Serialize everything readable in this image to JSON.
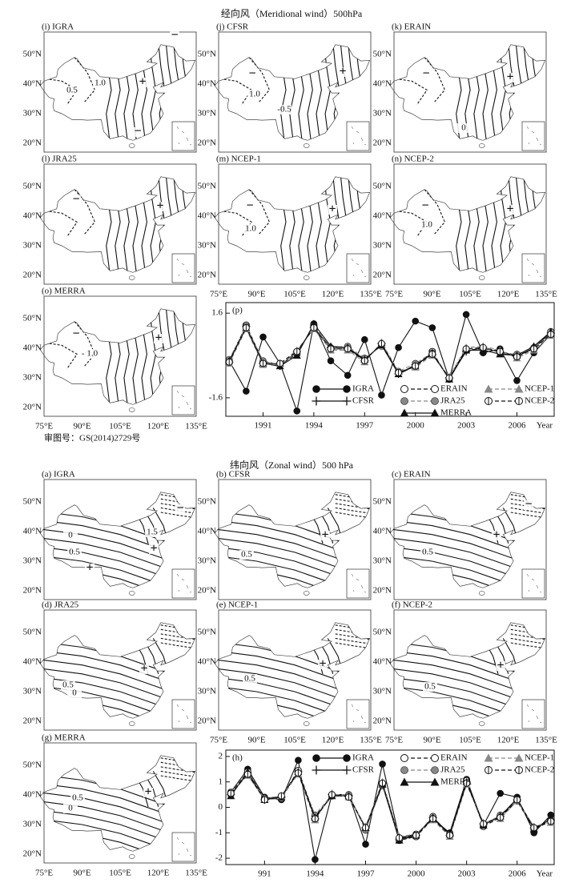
{
  "meridional": {
    "title": "经向风（Meridional wind）500hPa",
    "maps": [
      {
        "label": "(i) IGRA",
        "annotations": [
          "−",
          "+",
          "−",
          "1.0",
          "0.5"
        ]
      },
      {
        "label": "(j) CFSR",
        "annotations": [
          "−",
          "+",
          "1.0",
          "-0.5"
        ]
      },
      {
        "label": "(k) ERAIN",
        "annotations": [
          "−",
          "+",
          "0"
        ]
      },
      {
        "label": "(l) JRA25",
        "annotations": [
          "−",
          "+"
        ]
      },
      {
        "label": "(m) NCEP-1",
        "annotations": [
          "−",
          "+",
          "1.0"
        ]
      },
      {
        "label": "(n) NCEP-2",
        "annotations": [
          "−",
          "+",
          "1.0"
        ]
      },
      {
        "label": "(o) MERRA",
        "annotations": [
          "−",
          "+",
          "- 1.0"
        ]
      }
    ],
    "note": "审图号：GS(2014)2729号"
  },
  "zonal": {
    "title": "纬向风（Zonal wind）500 hPa",
    "maps": [
      {
        "label": "(a) IGRA",
        "annotations": [
          "−",
          "1.5",
          "+",
          "+",
          "0",
          "0.5"
        ]
      },
      {
        "label": "(b) CFSR",
        "annotations": [
          "+",
          "0.5"
        ]
      },
      {
        "label": "(c) ERAIN",
        "annotations": [
          "−",
          "+",
          "0.5"
        ]
      },
      {
        "label": "(d) JRA25",
        "annotations": [
          "+",
          "0.5",
          "0"
        ]
      },
      {
        "label": "(e) NCEP-1",
        "annotations": [
          "+",
          "0.5"
        ]
      },
      {
        "label": "(f) NCEP-2",
        "annotations": [
          "+",
          "0.5"
        ]
      },
      {
        "label": "(g) MERRA",
        "annotations": [
          "+",
          "0.5",
          "0"
        ]
      }
    ]
  },
  "map_lat_labels": [
    "50°N",
    "40°N",
    "30°N",
    "20°N"
  ],
  "map_lon_labels": [
    "75°E",
    "90°E",
    "105°E",
    "120°E",
    "135°E"
  ],
  "chart_data": [
    {
      "type": "line",
      "title": "(p)",
      "xlabel": "Year",
      "legend": "lower center",
      "x": [
        1989,
        1990,
        1991,
        1992,
        1993,
        1994,
        1995,
        1996,
        1997,
        1998,
        1999,
        2000,
        2001,
        2002,
        2003,
        2004,
        2005,
        2006,
        2007,
        2008
      ],
      "xlim": [
        1988.8,
        2008.2
      ],
      "xticks": [
        1991,
        1994,
        1997,
        2000,
        2003,
        2006
      ],
      "ylim": [
        -2.3,
        2.0
      ],
      "yticks": [
        1.6,
        -1.6
      ],
      "series": [
        {
          "name": "IGRA",
          "color": "#111111",
          "marker": "circle",
          "dash": "solid",
          "values": [
            -0.2,
            -1.35,
            0.7,
            -0.3,
            -2.1,
            1.2,
            -0.2,
            -0.75,
            0.6,
            -1.5,
            0.3,
            1.3,
            1.05,
            -0.9,
            1.55,
            0.1,
            0.25,
            -0.95,
            0.1,
            0.8
          ]
        },
        {
          "name": "CFSR",
          "color": "#111111",
          "marker": "plus",
          "dash": "solid",
          "values": [
            -0.25,
            1.1,
            -0.3,
            -0.4,
            0.15,
            1.05,
            0.3,
            0.3,
            -0.2,
            0.45,
            -0.7,
            -0.35,
            0.05,
            -0.85,
            0.15,
            0.3,
            0.1,
            -0.05,
            0.3,
            0.85
          ]
        },
        {
          "name": "ERAIN",
          "color": "#111111",
          "marker": "open-circle",
          "dash": "dashed",
          "values": [
            -0.2,
            1.15,
            -0.25,
            -0.35,
            0.05,
            1.15,
            0.25,
            0.25,
            -0.15,
            0.4,
            -0.65,
            -0.4,
            0.15,
            -0.9,
            0.2,
            0.25,
            0.15,
            0.0,
            0.25,
            0.9
          ]
        },
        {
          "name": "JRA25",
          "color": "#888888",
          "marker": "circle",
          "dash": "dashed",
          "values": [
            -0.15,
            1.1,
            -0.2,
            -0.35,
            0.1,
            1.1,
            0.3,
            0.35,
            -0.1,
            0.35,
            -0.6,
            -0.3,
            0.1,
            -0.85,
            0.25,
            0.3,
            0.1,
            0.05,
            0.3,
            0.8
          ]
        },
        {
          "name": "MERRA",
          "color": "#111111",
          "marker": "triangle",
          "dash": "solid",
          "values": [
            -0.2,
            1.05,
            -0.3,
            -0.4,
            0.0,
            1.2,
            0.35,
            0.3,
            -0.15,
            0.4,
            -0.7,
            -0.4,
            0.1,
            -0.9,
            0.2,
            0.2,
            0.05,
            0.0,
            0.35,
            0.9
          ]
        },
        {
          "name": "NCEP-1",
          "color": "#888888",
          "marker": "triangle",
          "dash": "dashed",
          "values": [
            -0.3,
            1.0,
            -0.35,
            -0.3,
            0.2,
            1.0,
            0.2,
            0.2,
            -0.25,
            0.5,
            -0.6,
            -0.45,
            0.0,
            -0.8,
            0.3,
            0.35,
            0.2,
            -0.1,
            0.2,
            0.75
          ]
        },
        {
          "name": "NCEP-2",
          "color": "#111111",
          "marker": "circle-plus",
          "dash": "dashed",
          "values": [
            -0.25,
            1.05,
            -0.3,
            -0.3,
            0.15,
            1.05,
            0.25,
            0.25,
            -0.2,
            0.45,
            -0.65,
            -0.4,
            0.05,
            -0.85,
            0.25,
            0.3,
            0.15,
            -0.05,
            0.25,
            0.8
          ]
        }
      ]
    },
    {
      "type": "line",
      "title": "(h)",
      "xlabel": "Year",
      "legend": "upper center",
      "x": [
        1989,
        1990,
        1991,
        1992,
        1993,
        1994,
        1995,
        1996,
        1997,
        1998,
        1999,
        2000,
        2001,
        2002,
        2003,
        2004,
        2005,
        2006,
        2007,
        2008
      ],
      "xlim": [
        1988.7,
        2008.2
      ],
      "xticks": [
        {
          "value": 1991,
          "label": "991"
        },
        1994,
        1997,
        2000,
        2003,
        2006
      ],
      "ylim": [
        -2.25,
        2.25
      ],
      "yticks": [
        2,
        1,
        0,
        -1,
        -2
      ],
      "series": [
        {
          "name": "IGRA",
          "color": "#111111",
          "marker": "circle",
          "dash": "solid",
          "values": [
            0.6,
            1.5,
            0.4,
            0.3,
            1.85,
            -2.05,
            0.5,
            0.5,
            -1.45,
            1.7,
            -1.2,
            -1.05,
            -0.45,
            -1.0,
            1.1,
            -0.7,
            0.55,
            0.4,
            -1.0,
            -0.3
          ]
        },
        {
          "name": "CFSR",
          "color": "#111111",
          "marker": "plus",
          "dash": "solid",
          "values": [
            0.5,
            1.35,
            0.3,
            0.4,
            1.4,
            -0.45,
            0.5,
            0.45,
            -0.8,
            0.95,
            -1.25,
            -1.1,
            -0.4,
            -1.1,
            1.0,
            -0.65,
            -0.35,
            0.3,
            -0.8,
            -0.5
          ]
        },
        {
          "name": "ERAIN",
          "color": "#111111",
          "marker": "open-circle",
          "dash": "dashed",
          "values": [
            0.55,
            1.4,
            0.35,
            0.4,
            1.45,
            -0.35,
            0.45,
            0.45,
            -0.85,
            0.9,
            -1.3,
            -1.15,
            -0.45,
            -1.05,
            1.05,
            -0.75,
            -0.4,
            0.25,
            -0.85,
            -0.55
          ]
        },
        {
          "name": "JRA25",
          "color": "#888888",
          "marker": "circle",
          "dash": "dashed",
          "values": [
            0.5,
            1.3,
            0.3,
            0.35,
            1.35,
            -0.3,
            0.5,
            0.5,
            -0.9,
            0.85,
            -1.2,
            -1.1,
            -0.35,
            -1.1,
            0.95,
            -0.7,
            -0.3,
            0.3,
            -0.8,
            -0.5
          ]
        },
        {
          "name": "MERRA",
          "color": "#111111",
          "marker": "triangle",
          "dash": "solid",
          "values": [
            0.45,
            1.4,
            0.3,
            0.4,
            1.4,
            -0.4,
            0.45,
            0.45,
            -0.8,
            0.9,
            -1.3,
            -1.1,
            -0.4,
            -1.05,
            1.0,
            -0.7,
            -0.35,
            0.35,
            -0.85,
            -0.45
          ]
        },
        {
          "name": "NCEP-1",
          "color": "#888888",
          "marker": "triangle",
          "dash": "dashed",
          "values": [
            0.6,
            1.25,
            0.35,
            0.45,
            1.3,
            -0.5,
            0.55,
            0.4,
            -0.75,
            1.0,
            -1.15,
            -1.05,
            -0.5,
            -1.15,
            0.9,
            -0.6,
            -0.45,
            0.25,
            -0.75,
            -0.6
          ]
        },
        {
          "name": "NCEP-2",
          "color": "#111111",
          "marker": "circle-plus",
          "dash": "dashed",
          "values": [
            0.55,
            1.3,
            0.3,
            0.45,
            1.35,
            -0.45,
            0.5,
            0.4,
            -0.8,
            0.95,
            -1.2,
            -1.1,
            -0.45,
            -1.1,
            0.95,
            -0.65,
            -0.4,
            0.3,
            -0.8,
            -0.55
          ]
        }
      ]
    }
  ]
}
